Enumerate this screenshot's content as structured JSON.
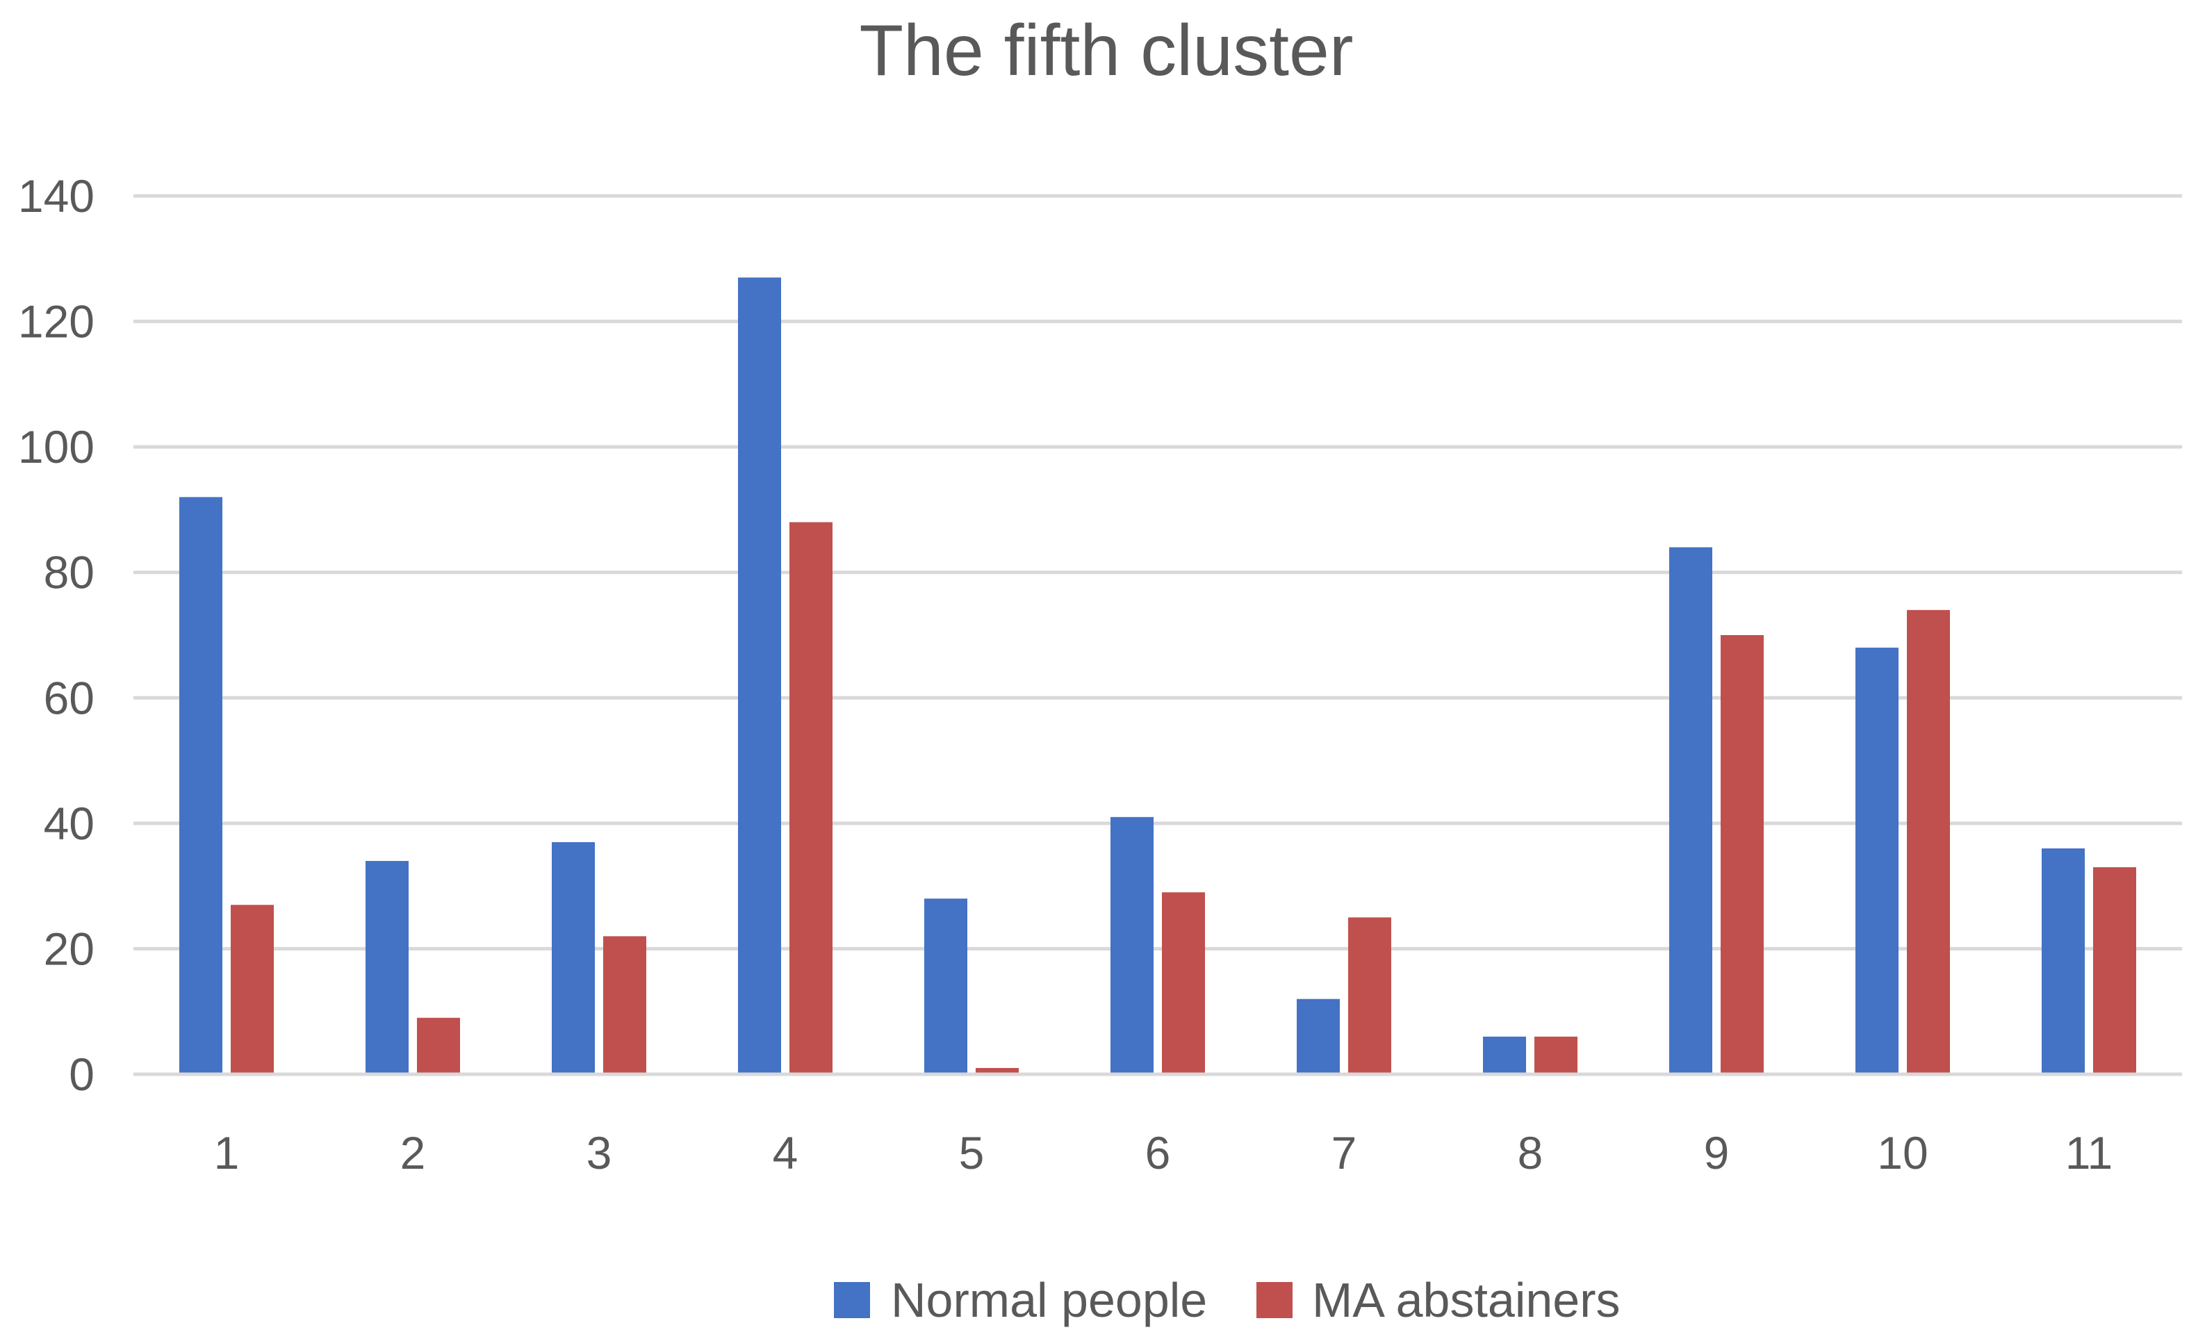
{
  "chart_data": {
    "type": "bar",
    "title": "The fifth cluster",
    "categories": [
      "1",
      "2",
      "3",
      "4",
      "5",
      "6",
      "7",
      "8",
      "9",
      "10",
      "11"
    ],
    "series": [
      {
        "name": "Normal people",
        "color": "#4472C4",
        "values": [
          92,
          34,
          37,
          127,
          28,
          41,
          12,
          6,
          84,
          68,
          36
        ]
      },
      {
        "name": "MA abstainers",
        "color": "#C0504D",
        "values": [
          27,
          9,
          22,
          88,
          1,
          29,
          25,
          6,
          70,
          74,
          33
        ]
      }
    ],
    "ylim": [
      0,
      140
    ],
    "yticks": [
      "0",
      "20",
      "40",
      "60",
      "80",
      "100",
      "120",
      "140"
    ],
    "grid": true,
    "legend_position": "bottom"
  }
}
